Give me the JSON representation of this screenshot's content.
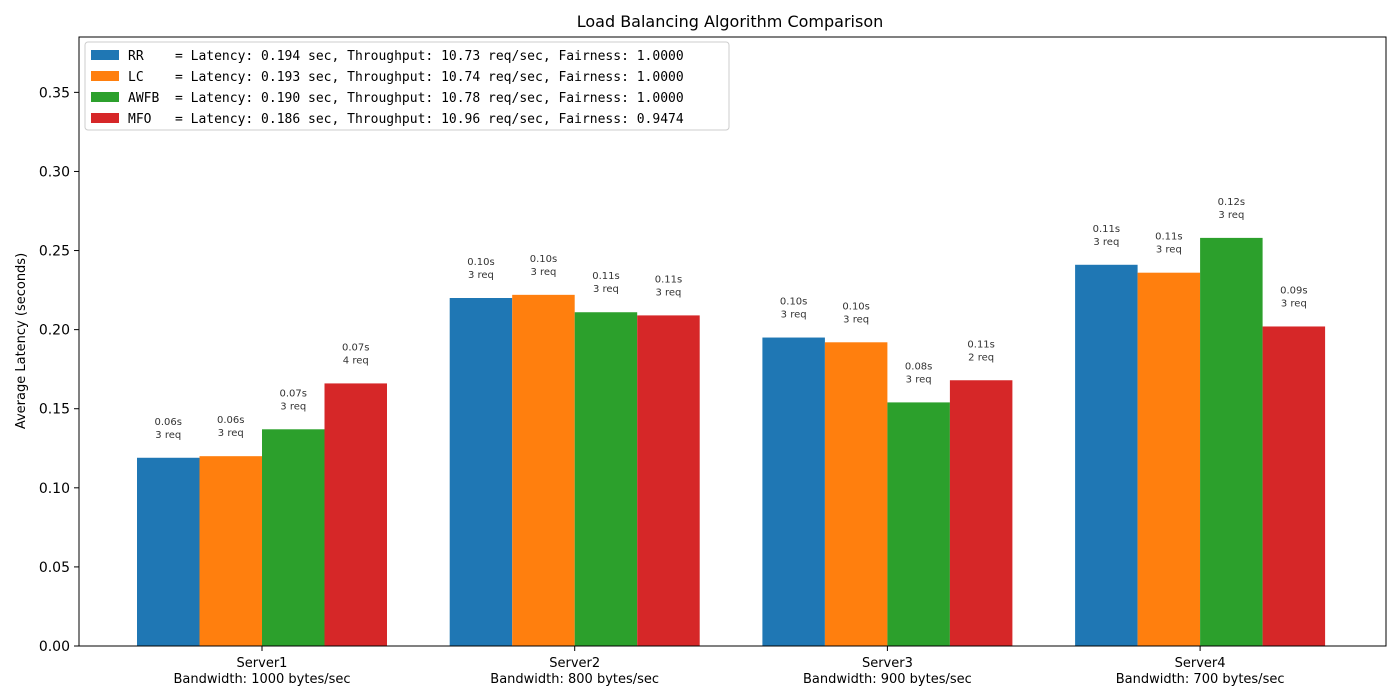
{
  "chart_data": {
    "type": "bar",
    "title": "Load Balancing Algorithm Comparison",
    "xlabel": "",
    "ylabel": "Average Latency (seconds)",
    "ylim": [
      0,
      0.385
    ],
    "yticks": [
      "0.00",
      "0.05",
      "0.10",
      "0.15",
      "0.20",
      "0.25",
      "0.30",
      "0.35"
    ],
    "categories": [
      [
        "Server1",
        "Bandwidth: 1000 bytes/sec"
      ],
      [
        "Server2",
        "Bandwidth: 800 bytes/sec"
      ],
      [
        "Server3",
        "Bandwidth: 900 bytes/sec"
      ],
      [
        "Server4",
        "Bandwidth: 700 bytes/sec"
      ]
    ],
    "series": [
      {
        "name": "RR",
        "color": "#1f77b4",
        "legend": "RR    = Latency: 0.194 sec, Throughput: 10.73 req/sec, Fairness: 1.0000",
        "values": [
          0.119,
          0.22,
          0.195,
          0.241
        ],
        "labels": [
          [
            "0.06s",
            "3 req"
          ],
          [
            "0.10s",
            "3 req"
          ],
          [
            "0.10s",
            "3 req"
          ],
          [
            "0.11s",
            "3 req"
          ]
        ]
      },
      {
        "name": "LC",
        "color": "#ff7f0e",
        "legend": "LC    = Latency: 0.193 sec, Throughput: 10.74 req/sec, Fairness: 1.0000",
        "values": [
          0.12,
          0.222,
          0.192,
          0.236
        ],
        "labels": [
          [
            "0.06s",
            "3 req"
          ],
          [
            "0.10s",
            "3 req"
          ],
          [
            "0.10s",
            "3 req"
          ],
          [
            "0.11s",
            "3 req"
          ]
        ]
      },
      {
        "name": "AWFB",
        "color": "#2ca02c",
        "legend": "AWFB  = Latency: 0.190 sec, Throughput: 10.78 req/sec, Fairness: 1.0000",
        "values": [
          0.137,
          0.211,
          0.154,
          0.258
        ],
        "labels": [
          [
            "0.07s",
            "3 req"
          ],
          [
            "0.11s",
            "3 req"
          ],
          [
            "0.08s",
            "3 req"
          ],
          [
            "0.12s",
            "3 req"
          ]
        ]
      },
      {
        "name": "MFO",
        "color": "#d62728",
        "legend": "MFO   = Latency: 0.186 sec, Throughput: 10.96 req/sec, Fairness: 0.9474",
        "values": [
          0.166,
          0.209,
          0.168,
          0.202
        ],
        "labels": [
          [
            "0.07s",
            "4 req"
          ],
          [
            "0.11s",
            "3 req"
          ],
          [
            "0.11s",
            "2 req"
          ],
          [
            "0.09s",
            "3 req"
          ]
        ]
      }
    ],
    "legend_position": "top-left",
    "grid": false
  }
}
